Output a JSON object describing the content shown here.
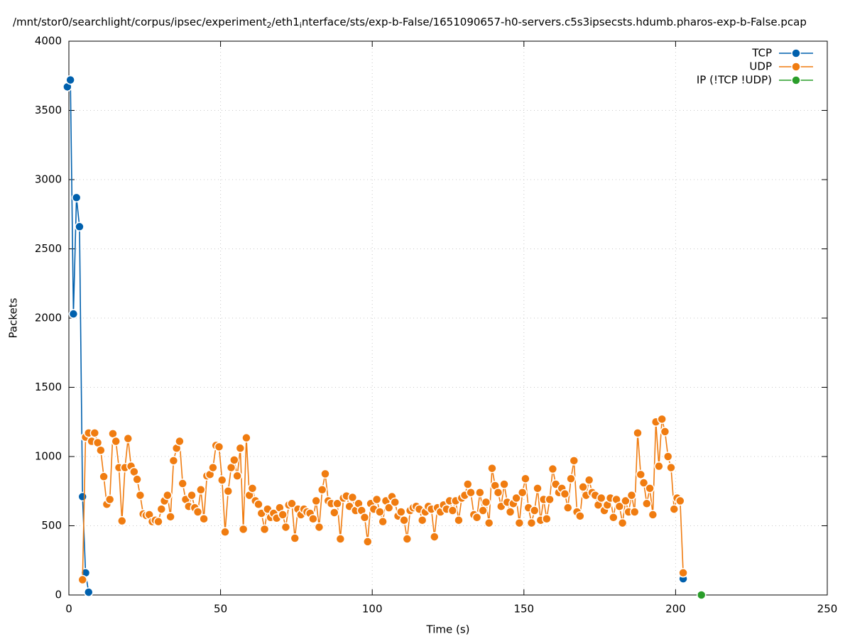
{
  "chart_data": {
    "type": "line",
    "title": [
      "/mnt/stor0/searchlight/corpus/ipsec/experiment",
      "2",
      "/eth1",
      "i",
      "nterface/sts/exp-b-False/1651090657-h0-servers.c5s3ipsecsts.hdumb.pharos-exp-b-False.pcap"
    ],
    "xlabel": "Time (s)",
    "ylabel": "Packets",
    "xlim": [
      0,
      250
    ],
    "ylim": [
      0,
      4000
    ],
    "xticks": [
      0,
      50,
      100,
      150,
      200,
      250
    ],
    "yticks": [
      0,
      500,
      1000,
      1500,
      2000,
      2500,
      3000,
      3500,
      4000
    ],
    "grid": true,
    "legend": "top-right",
    "series": [
      {
        "name": "TCP",
        "color": "#0060ad",
        "x": [
          -0.5,
          0.5,
          1.5,
          2.5,
          3.5,
          4.5,
          5.5,
          6.5,
          7.5,
          202.5
        ],
        "values": [
          3670,
          3720,
          2030,
          2870,
          2660,
          710,
          160,
          20,
          null,
          117
        ]
      },
      {
        "name": "UDP",
        "color": "#f07c10",
        "x": [
          4.5,
          5.5,
          6.5,
          7.5,
          8.5,
          9.5,
          10.5,
          11.5,
          12.5,
          13.5,
          14.5,
          15.5,
          16.5,
          17.5,
          18.5,
          19.5,
          20.5,
          21.5,
          22.5,
          23.5,
          24.5,
          25.5,
          26.5,
          27.5,
          28.5,
          29.5,
          30.5,
          31.5,
          32.5,
          33.5,
          34.5,
          35.5,
          36.5,
          37.5,
          38.5,
          39.5,
          40.5,
          41.5,
          42.5,
          43.5,
          44.5,
          45.5,
          46.5,
          47.5,
          48.5,
          49.5,
          50.5,
          51.5,
          52.5,
          53.5,
          54.5,
          55.5,
          56.5,
          57.5,
          58.5,
          59.5,
          60.5,
          61.5,
          62.5,
          63.5,
          64.5,
          65.5,
          66.5,
          67.5,
          68.5,
          69.5,
          70.5,
          71.5,
          72.5,
          73.5,
          74.5,
          75.5,
          76.5,
          77.5,
          78.5,
          79.5,
          80.5,
          81.5,
          82.5,
          83.5,
          84.5,
          85.5,
          86.5,
          87.5,
          88.5,
          89.5,
          90.5,
          91.5,
          92.5,
          93.5,
          94.5,
          95.5,
          96.5,
          97.5,
          98.5,
          99.5,
          100.5,
          101.5,
          102.5,
          103.5,
          104.5,
          105.5,
          106.5,
          107.5,
          108.5,
          109.5,
          110.5,
          111.5,
          112.5,
          113.5,
          114.5,
          115.5,
          116.5,
          117.5,
          118.5,
          119.5,
          120.5,
          121.5,
          122.5,
          123.5,
          124.5,
          125.5,
          126.5,
          127.5,
          128.5,
          129.5,
          130.5,
          131.5,
          132.5,
          133.5,
          134.5,
          135.5,
          136.5,
          137.5,
          138.5,
          139.5,
          140.5,
          141.5,
          142.5,
          143.5,
          144.5,
          145.5,
          146.5,
          147.5,
          148.5,
          149.5,
          150.5,
          151.5,
          152.5,
          153.5,
          154.5,
          155.5,
          156.5,
          157.5,
          158.5,
          159.5,
          160.5,
          161.5,
          162.5,
          163.5,
          164.5,
          165.5,
          166.5,
          167.5,
          168.5,
          169.5,
          170.5,
          171.5,
          172.5,
          173.5,
          174.5,
          175.5,
          176.5,
          177.5,
          178.5,
          179.5,
          180.5,
          181.5,
          182.5,
          183.5,
          184.5,
          185.5,
          186.5,
          187.5,
          188.5,
          189.5,
          190.5,
          191.5,
          192.5,
          193.5,
          194.5,
          195.5,
          196.5,
          197.5,
          198.5,
          199.5,
          200.5,
          201.5,
          202.5
        ],
        "values": [
          110,
          1140,
          1170,
          1110,
          1170,
          1100,
          1045,
          855,
          655,
          690,
          1165,
          1110,
          920,
          535,
          920,
          1130,
          930,
          890,
          835,
          720,
          585,
          575,
          580,
          530,
          540,
          530,
          620,
          680,
          720,
          565,
          970,
          1060,
          1110,
          805,
          690,
          640,
          720,
          630,
          600,
          760,
          550,
          860,
          870,
          920,
          1080,
          1070,
          830,
          455,
          750,
          920,
          975,
          860,
          1060,
          475,
          1135,
          720,
          770,
          680,
          655,
          590,
          475,
          620,
          560,
          590,
          555,
          630,
          580,
          490,
          650,
          660,
          410,
          620,
          580,
          620,
          600,
          590,
          550,
          680,
          490,
          760,
          875,
          680,
          660,
          595,
          660,
          405,
          700,
          715,
          640,
          705,
          610,
          660,
          610,
          560,
          385,
          660,
          620,
          690,
          600,
          530,
          680,
          630,
          710,
          670,
          570,
          600,
          540,
          405,
          610,
          630,
          640,
          620,
          540,
          600,
          640,
          620,
          420,
          630,
          600,
          650,
          620,
          680,
          610,
          680,
          540,
          700,
          720,
          800,
          740,
          580,
          560,
          740,
          610,
          670,
          520,
          915,
          790,
          740,
          640,
          800,
          670,
          600,
          660,
          700,
          520,
          740,
          840,
          630,
          520,
          610,
          770,
          540,
          690,
          550,
          690,
          910,
          800,
          740,
          770,
          730,
          630,
          840,
          970,
          600,
          570,
          780,
          720,
          830,
          740,
          720,
          650,
          700,
          610,
          650,
          700,
          560,
          690,
          640,
          520,
          680,
          600,
          720,
          600,
          1170,
          870,
          810,
          660,
          770,
          580,
          1250,
          930,
          1270,
          1180,
          1000,
          920,
          620,
          700,
          680,
          160
        ]
      },
      {
        "name": "IP (!TCP  !UDP)",
        "color": "#2a9d2a",
        "x": [
          208.5
        ],
        "values": [
          0
        ]
      }
    ]
  }
}
